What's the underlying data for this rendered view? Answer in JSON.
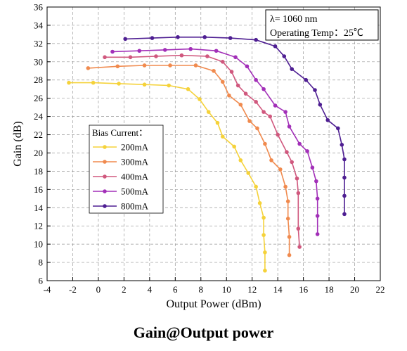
{
  "caption": "Gain@Output power",
  "chart_data": {
    "type": "line",
    "xlabel": "Output Power (dBm)",
    "ylabel": "Gain (dB)",
    "xlim": [
      -4,
      22
    ],
    "ylim": [
      6,
      36
    ],
    "xticks": [
      -4,
      -2,
      0,
      2,
      4,
      6,
      8,
      10,
      12,
      14,
      16,
      18,
      20,
      22
    ],
    "yticks": [
      6,
      8,
      10,
      12,
      14,
      16,
      18,
      20,
      22,
      24,
      26,
      28,
      30,
      32,
      34,
      36
    ],
    "grid": "dashed",
    "annotation": [
      "λ= 1060 nm",
      "Operating Temp：25℃"
    ],
    "legend_title": "Bias Current：",
    "legend_position": "left-middle",
    "series": [
      {
        "name": "200mA",
        "color": "#F5D23A",
        "x": [
          -2.3,
          -0.4,
          1.6,
          3.6,
          5.5,
          7.0,
          7.9,
          8.6,
          9.3,
          9.7,
          10.6,
          11.1,
          11.7,
          12.3,
          12.6,
          12.9,
          12.9,
          13.0,
          13.0
        ],
        "y": [
          27.7,
          27.7,
          27.6,
          27.5,
          27.4,
          27.0,
          25.9,
          24.5,
          23.3,
          21.8,
          20.7,
          19.2,
          17.8,
          16.3,
          14.5,
          12.9,
          11.0,
          9.1,
          7.1
        ]
      },
      {
        "name": "300mA",
        "color": "#F08A4E",
        "x": [
          -0.8,
          1.5,
          3.6,
          5.6,
          7.6,
          9.0,
          9.7,
          10.2,
          11.1,
          11.8,
          12.4,
          13.0,
          13.5,
          14.2,
          14.6,
          14.8,
          14.8,
          14.9,
          14.9
        ],
        "y": [
          29.3,
          29.5,
          29.6,
          29.6,
          29.6,
          29.0,
          27.8,
          26.3,
          25.3,
          23.5,
          22.7,
          21.0,
          19.2,
          18.2,
          16.3,
          14.7,
          12.8,
          10.8,
          8.8
        ]
      },
      {
        "name": "400mA",
        "color": "#D0587E",
        "x": [
          0.5,
          2.5,
          4.5,
          6.5,
          8.5,
          9.7,
          10.4,
          10.9,
          11.5,
          12.3,
          12.9,
          13.4,
          14.0,
          14.7,
          15.1,
          15.5,
          15.6,
          15.6,
          15.7
        ],
        "y": [
          30.5,
          30.5,
          30.6,
          30.7,
          30.6,
          30.0,
          28.9,
          27.4,
          26.5,
          25.6,
          24.5,
          24.0,
          22.0,
          20.1,
          19.0,
          17.2,
          15.6,
          11.7,
          9.7
        ]
      },
      {
        "name": "500mA",
        "color": "#A22FB8",
        "x": [
          1.1,
          3.2,
          5.2,
          7.2,
          9.2,
          10.7,
          11.6,
          12.3,
          12.9,
          13.8,
          14.6,
          14.9,
          15.7,
          16.3,
          16.7,
          17.0,
          17.1,
          17.1,
          17.1
        ],
        "y": [
          31.1,
          31.2,
          31.3,
          31.4,
          31.2,
          30.5,
          29.5,
          28.0,
          27.0,
          25.2,
          24.5,
          22.9,
          21.0,
          20.2,
          18.4,
          16.9,
          15.0,
          13.1,
          11.1
        ]
      },
      {
        "name": "800mA",
        "color": "#4E1E92",
        "x": [
          2.1,
          4.2,
          6.2,
          8.3,
          10.3,
          12.3,
          13.8,
          14.5,
          15.1,
          16.2,
          16.9,
          17.3,
          17.9,
          18.7,
          19.0,
          19.2,
          19.2,
          19.2,
          19.2
        ],
        "y": [
          32.5,
          32.6,
          32.7,
          32.7,
          32.6,
          32.4,
          31.7,
          30.6,
          29.2,
          28.0,
          26.9,
          25.3,
          23.6,
          22.7,
          20.9,
          19.3,
          17.3,
          15.3,
          13.3
        ]
      }
    ]
  }
}
